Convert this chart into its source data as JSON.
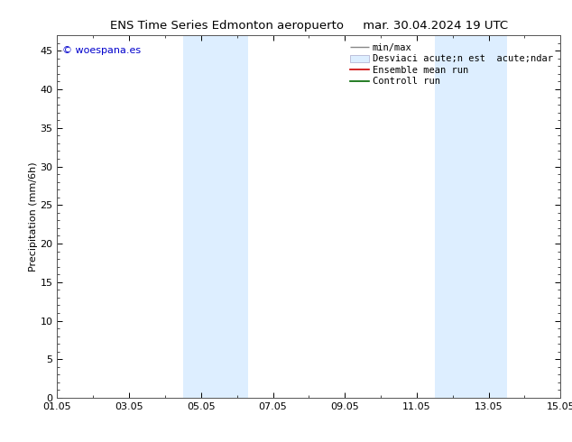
{
  "title_left": "ENS Time Series Edmonton aeropuerto",
  "title_right": "mar. 30.04.2024 19 UTC",
  "ylabel": "Precipitation (mm/6h)",
  "xlim": [
    0,
    14
  ],
  "ylim": [
    0,
    47
  ],
  "yticks": [
    0,
    5,
    10,
    15,
    20,
    25,
    30,
    35,
    40,
    45
  ],
  "xtick_labels": [
    "01.05",
    "03.05",
    "05.05",
    "07.05",
    "09.05",
    "11.05",
    "13.05",
    "15.05"
  ],
  "xtick_positions": [
    0,
    2,
    4,
    6,
    8,
    10,
    12,
    14
  ],
  "shaded_bands": [
    {
      "xmin": 3.5,
      "xmax": 5.3,
      "color": "#ddeeff"
    },
    {
      "xmin": 10.5,
      "xmax": 12.5,
      "color": "#ddeeff"
    }
  ],
  "watermark": "© woespana.es",
  "watermark_color": "#0000cc",
  "legend_labels": [
    "min/max",
    "Desviaci acute;n est  acute;ndar",
    "Ensemble mean run",
    "Controll run"
  ],
  "legend_colors_line": [
    "#aaaaaa",
    "#ccddee",
    "#cc0000",
    "#006600"
  ],
  "bg_color": "#ffffff",
  "plot_bg_color": "#ffffff",
  "border_color": "#555555",
  "title_fontsize": 9.5,
  "ylabel_fontsize": 8,
  "tick_fontsize": 8,
  "legend_fontsize": 7.5,
  "watermark_fontsize": 8
}
